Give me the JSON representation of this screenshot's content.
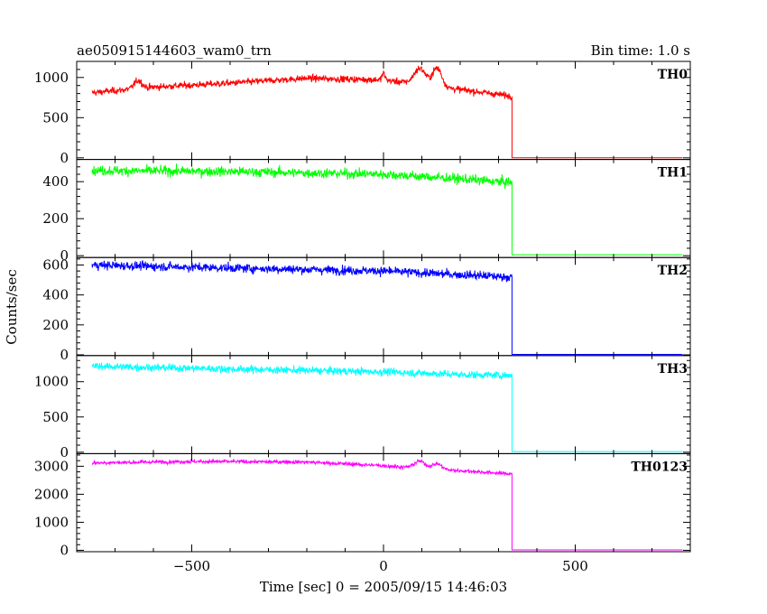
{
  "chart_data": {
    "type": "line",
    "title": "ae050915144603_wam0_trn",
    "bin_time_label": "Bin time: 1.0 s",
    "xlabel": "Time [sec] 0 = 2005/09/15 14:46:03",
    "ylabel": "Counts/sec",
    "xlim": [
      -800,
      800
    ],
    "x_ticks": [
      -500,
      0,
      500
    ],
    "x_tick_labels": [
      "−500",
      "0",
      "500"
    ],
    "step_time": 335,
    "panels": [
      {
        "name": "TH0",
        "color": "#ff0000",
        "ylim": [
          -20,
          1200
        ],
        "y_ticks": [
          0,
          500,
          1000
        ],
        "y_tick_labels": [
          "0",
          "500",
          "1000"
        ],
        "profile": [
          [
            -760,
            810
          ],
          [
            -600,
            880
          ],
          [
            -400,
            930
          ],
          [
            -200,
            990
          ],
          [
            0,
            970
          ],
          [
            150,
            880
          ],
          [
            250,
            820
          ],
          [
            330,
            770
          ]
        ],
        "noise": 35,
        "flares": [
          [
            -640,
            100,
            10
          ],
          [
            0,
            80,
            4
          ],
          [
            95,
            200,
            15
          ],
          [
            140,
            230,
            12
          ]
        ],
        "after_step": 0
      },
      {
        "name": "TH1",
        "color": "#00ff00",
        "ylim": [
          -10,
          520
        ],
        "y_ticks": [
          0,
          200,
          400
        ],
        "y_tick_labels": [
          "0",
          "200",
          "400"
        ],
        "profile": [
          [
            -760,
            460
          ],
          [
            -400,
            455
          ],
          [
            0,
            440
          ],
          [
            200,
            415
          ],
          [
            330,
            395
          ]
        ],
        "noise": 22,
        "flares": [],
        "after_step": 5
      },
      {
        "name": "TH2",
        "color": "#0000ff",
        "ylim": [
          -5,
          650
        ],
        "y_ticks": [
          0,
          200,
          400,
          600
        ],
        "y_tick_labels": [
          "0",
          "200",
          "400",
          "600"
        ],
        "profile": [
          [
            -760,
            600
          ],
          [
            -400,
            580
          ],
          [
            0,
            560
          ],
          [
            200,
            535
          ],
          [
            330,
            520
          ]
        ],
        "noise": 25,
        "flares": [],
        "after_step": 3
      },
      {
        "name": "TH3",
        "color": "#00ffff",
        "ylim": [
          -20,
          1370
        ],
        "y_ticks": [
          0,
          500,
          1000
        ],
        "y_tick_labels": [
          "0",
          "500",
          "1000"
        ],
        "profile": [
          [
            -760,
            1220
          ],
          [
            -400,
            1180
          ],
          [
            0,
            1140
          ],
          [
            200,
            1100
          ],
          [
            330,
            1090
          ]
        ],
        "noise": 45,
        "flares": [],
        "after_step": 10
      },
      {
        "name": "TH0123",
        "color": "#ff00ff",
        "ylim": [
          -50,
          3450
        ],
        "y_ticks": [
          0,
          1000,
          2000,
          3000
        ],
        "y_tick_labels": [
          "0",
          "1000",
          "2000",
          "3000"
        ],
        "profile": [
          [
            -760,
            3120
          ],
          [
            -500,
            3170
          ],
          [
            -200,
            3150
          ],
          [
            0,
            3020
          ],
          [
            150,
            2880
          ],
          [
            330,
            2730
          ]
        ],
        "noise": 55,
        "flares": [
          [
            95,
            250,
            14
          ],
          [
            140,
            200,
            12
          ]
        ],
        "after_step": 15
      }
    ]
  }
}
